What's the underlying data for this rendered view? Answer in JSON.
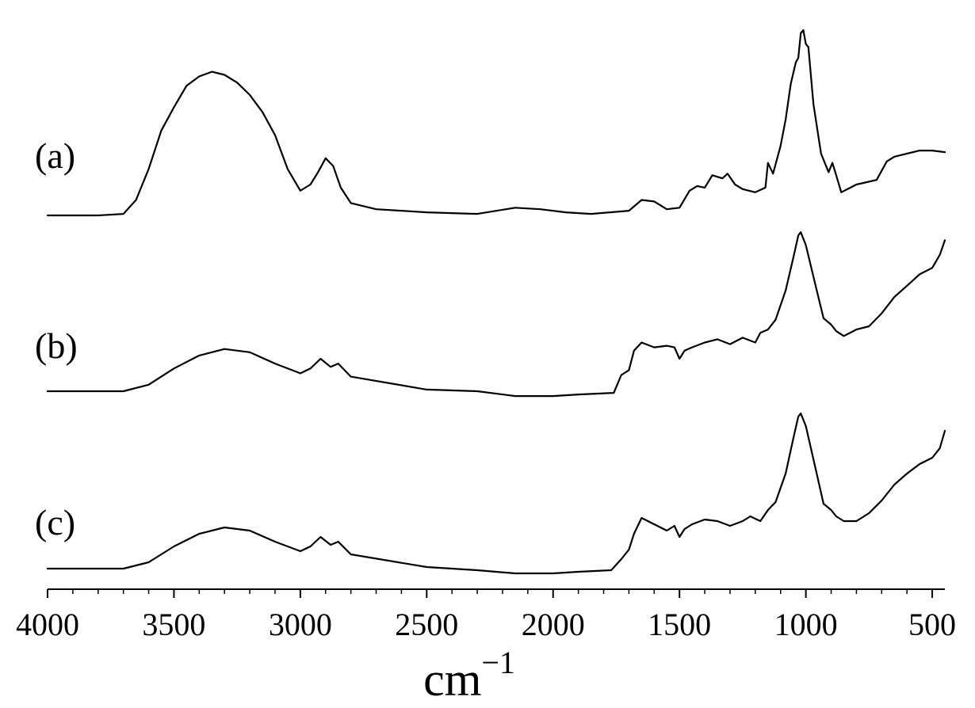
{
  "chart_data": {
    "type": "line",
    "xlabel": "cm",
    "xlabel_exponent": "−1",
    "xlim": [
      4000,
      450
    ],
    "x_reversed": true,
    "x_ticks": [
      4000,
      3500,
      3000,
      2500,
      2000,
      1500,
      1000,
      500
    ],
    "x_tick_labels": [
      "4000",
      "3500",
      "3000",
      "2500",
      "2000",
      "1500",
      "1000",
      "500"
    ],
    "y_axis_shown": false,
    "grid": false,
    "line_color": "#000000",
    "series": [
      {
        "name": "(a)",
        "points": [
          [
            4000,
            0
          ],
          [
            3800,
            0
          ],
          [
            3700,
            0.01
          ],
          [
            3650,
            0.1
          ],
          [
            3600,
            0.3
          ],
          [
            3550,
            0.55
          ],
          [
            3500,
            0.7
          ],
          [
            3450,
            0.84
          ],
          [
            3400,
            0.9
          ],
          [
            3350,
            0.93
          ],
          [
            3300,
            0.91
          ],
          [
            3250,
            0.86
          ],
          [
            3200,
            0.78
          ],
          [
            3150,
            0.67
          ],
          [
            3100,
            0.52
          ],
          [
            3050,
            0.3
          ],
          [
            3000,
            0.16
          ],
          [
            2960,
            0.2
          ],
          [
            2930,
            0.28
          ],
          [
            2900,
            0.37
          ],
          [
            2870,
            0.32
          ],
          [
            2840,
            0.18
          ],
          [
            2800,
            0.08
          ],
          [
            2700,
            0.04
          ],
          [
            2600,
            0.03
          ],
          [
            2500,
            0.02
          ],
          [
            2300,
            0.01
          ],
          [
            2150,
            0.05
          ],
          [
            2050,
            0.04
          ],
          [
            1950,
            0.02
          ],
          [
            1850,
            0.01
          ],
          [
            1700,
            0.03
          ],
          [
            1650,
            0.1
          ],
          [
            1600,
            0.09
          ],
          [
            1550,
            0.04
          ],
          [
            1500,
            0.05
          ],
          [
            1460,
            0.16
          ],
          [
            1430,
            0.19
          ],
          [
            1400,
            0.18
          ],
          [
            1370,
            0.26
          ],
          [
            1330,
            0.24
          ],
          [
            1310,
            0.27
          ],
          [
            1280,
            0.2
          ],
          [
            1250,
            0.17
          ],
          [
            1200,
            0.15
          ],
          [
            1160,
            0.18
          ],
          [
            1150,
            0.34
          ],
          [
            1130,
            0.27
          ],
          [
            1100,
            0.45
          ],
          [
            1080,
            0.62
          ],
          [
            1060,
            0.85
          ],
          [
            1040,
            0.99
          ],
          [
            1030,
            1.02
          ],
          [
            1020,
            1.18
          ],
          [
            1010,
            1.2
          ],
          [
            1000,
            1.11
          ],
          [
            990,
            1.09
          ],
          [
            970,
            0.72
          ],
          [
            940,
            0.4
          ],
          [
            910,
            0.28
          ],
          [
            895,
            0.34
          ],
          [
            880,
            0.26
          ],
          [
            860,
            0.15
          ],
          [
            800,
            0.2
          ],
          [
            720,
            0.23
          ],
          [
            680,
            0.35
          ],
          [
            650,
            0.38
          ],
          [
            600,
            0.4
          ],
          [
            550,
            0.42
          ],
          [
            500,
            0.42
          ],
          [
            450,
            0.41
          ]
        ]
      },
      {
        "name": "(b)",
        "points": [
          [
            4000,
            0
          ],
          [
            3800,
            0
          ],
          [
            3700,
            0
          ],
          [
            3600,
            0.04
          ],
          [
            3500,
            0.14
          ],
          [
            3400,
            0.22
          ],
          [
            3300,
            0.26
          ],
          [
            3200,
            0.24
          ],
          [
            3100,
            0.17
          ],
          [
            3000,
            0.11
          ],
          [
            2960,
            0.14
          ],
          [
            2920,
            0.2
          ],
          [
            2880,
            0.15
          ],
          [
            2850,
            0.17
          ],
          [
            2800,
            0.09
          ],
          [
            2500,
            0.01
          ],
          [
            2300,
            0
          ],
          [
            2150,
            -0.03
          ],
          [
            2000,
            -0.03
          ],
          [
            1900,
            -0.02
          ],
          [
            1760,
            -0.01
          ],
          [
            1730,
            0.1
          ],
          [
            1700,
            0.13
          ],
          [
            1680,
            0.25
          ],
          [
            1650,
            0.3
          ],
          [
            1600,
            0.27
          ],
          [
            1550,
            0.28
          ],
          [
            1520,
            0.27
          ],
          [
            1500,
            0.2
          ],
          [
            1480,
            0.25
          ],
          [
            1450,
            0.27
          ],
          [
            1400,
            0.3
          ],
          [
            1350,
            0.32
          ],
          [
            1300,
            0.29
          ],
          [
            1250,
            0.33
          ],
          [
            1200,
            0.3
          ],
          [
            1180,
            0.36
          ],
          [
            1150,
            0.38
          ],
          [
            1120,
            0.44
          ],
          [
            1080,
            0.62
          ],
          [
            1050,
            0.82
          ],
          [
            1030,
            0.96
          ],
          [
            1020,
            0.98
          ],
          [
            1000,
            0.9
          ],
          [
            960,
            0.64
          ],
          [
            930,
            0.45
          ],
          [
            900,
            0.41
          ],
          [
            880,
            0.37
          ],
          [
            850,
            0.34
          ],
          [
            800,
            0.38
          ],
          [
            750,
            0.4
          ],
          [
            700,
            0.48
          ],
          [
            650,
            0.58
          ],
          [
            600,
            0.65
          ],
          [
            550,
            0.72
          ],
          [
            500,
            0.76
          ],
          [
            470,
            0.84
          ],
          [
            450,
            0.93
          ]
        ]
      },
      {
        "name": "(c)",
        "points": [
          [
            4000,
            0
          ],
          [
            3800,
            0
          ],
          [
            3700,
            0
          ],
          [
            3600,
            0.04
          ],
          [
            3500,
            0.14
          ],
          [
            3400,
            0.22
          ],
          [
            3300,
            0.26
          ],
          [
            3200,
            0.24
          ],
          [
            3100,
            0.17
          ],
          [
            3000,
            0.11
          ],
          [
            2960,
            0.14
          ],
          [
            2920,
            0.2
          ],
          [
            2880,
            0.15
          ],
          [
            2850,
            0.17
          ],
          [
            2800,
            0.09
          ],
          [
            2500,
            0.01
          ],
          [
            2300,
            -0.01
          ],
          [
            2150,
            -0.03
          ],
          [
            2000,
            -0.03
          ],
          [
            1900,
            -0.02
          ],
          [
            1770,
            -0.01
          ],
          [
            1730,
            0.06
          ],
          [
            1700,
            0.12
          ],
          [
            1680,
            0.22
          ],
          [
            1650,
            0.32
          ],
          [
            1600,
            0.28
          ],
          [
            1550,
            0.24
          ],
          [
            1520,
            0.27
          ],
          [
            1500,
            0.2
          ],
          [
            1480,
            0.25
          ],
          [
            1450,
            0.28
          ],
          [
            1400,
            0.31
          ],
          [
            1350,
            0.3
          ],
          [
            1300,
            0.27
          ],
          [
            1250,
            0.3
          ],
          [
            1220,
            0.33
          ],
          [
            1180,
            0.3
          ],
          [
            1150,
            0.37
          ],
          [
            1120,
            0.42
          ],
          [
            1080,
            0.6
          ],
          [
            1050,
            0.82
          ],
          [
            1030,
            0.96
          ],
          [
            1020,
            0.98
          ],
          [
            1000,
            0.9
          ],
          [
            960,
            0.62
          ],
          [
            930,
            0.41
          ],
          [
            900,
            0.37
          ],
          [
            880,
            0.33
          ],
          [
            850,
            0.3
          ],
          [
            800,
            0.3
          ],
          [
            750,
            0.35
          ],
          [
            700,
            0.43
          ],
          [
            650,
            0.53
          ],
          [
            600,
            0.6
          ],
          [
            550,
            0.66
          ],
          [
            500,
            0.7
          ],
          [
            470,
            0.76
          ],
          [
            450,
            0.87
          ]
        ]
      }
    ]
  }
}
